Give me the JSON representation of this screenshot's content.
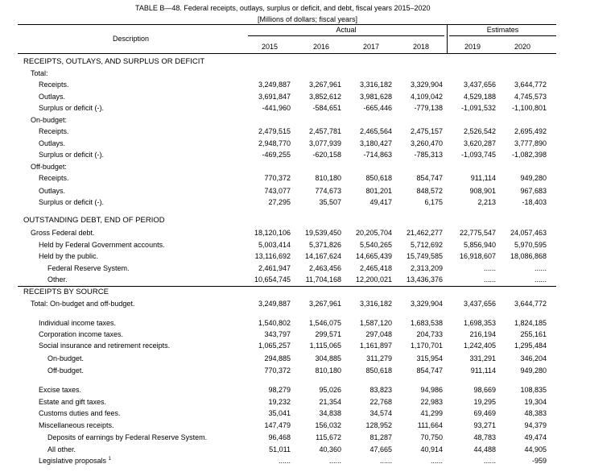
{
  "title": "TABLE B—48.  Federal receipts, outlays, surplus or deficit, and debt, fiscal years 2015–2020",
  "units": "[Millions of dollars; fiscal years]",
  "header": {
    "description": "Description",
    "actual": "Actual",
    "estimates": "Estimates",
    "years": [
      "2015",
      "2016",
      "2017",
      "2018",
      "2019",
      "2020"
    ]
  },
  "rows": [
    {
      "label": "RECEIPTS, OUTLAYS, AND SURPLUS OR DEFICIT",
      "indent": 0,
      "section": true,
      "values": []
    },
    {
      "label": "Total:",
      "indent": 1,
      "values": []
    },
    {
      "label": "Receipts.",
      "indent": 2,
      "values": [
        "3,249,887",
        "3,267,961",
        "3,316,182",
        "3,329,904",
        "3,437,656",
        "3,644,772"
      ]
    },
    {
      "label": "Outlays.",
      "indent": 2,
      "values": [
        "3,691,847",
        "3,852,612",
        "3,981,628",
        "4,109,042",
        "4,529,188",
        "4,745,573"
      ]
    },
    {
      "label": "Surplus or deficit (-).",
      "indent": 2,
      "values": [
        "-441,960",
        "-584,651",
        "-665,446",
        "-779,138",
        "-1,091,532",
        "-1,100,801"
      ]
    },
    {
      "label": "On-budget:",
      "indent": 1,
      "values": []
    },
    {
      "label": "Receipts.",
      "indent": 2,
      "values": [
        "2,479,515",
        "2,457,781",
        "2,465,564",
        "2,475,157",
        "2,526,542",
        "2,695,492"
      ]
    },
    {
      "label": "Outlays.",
      "indent": 2,
      "values": [
        "2,948,770",
        "3,077,939",
        "3,180,427",
        "3,260,470",
        "3,620,287",
        "3,777,890"
      ]
    },
    {
      "label": "Surplus or deficit (-).",
      "indent": 2,
      "values": [
        "-469,255",
        "-620,158",
        "-714,863",
        "-785,313",
        "-1,093,745",
        "-1,082,398"
      ]
    },
    {
      "label": "Off-budget:",
      "indent": 1,
      "values": []
    },
    {
      "label": "Receipts.",
      "indent": 2,
      "values": [
        "770,372",
        "810,180",
        "850,618",
        "854,747",
        "911,114",
        "949,280"
      ]
    },
    {
      "label": "Outlays.",
      "indent": 2,
      "values": [
        "743,077",
        "774,673",
        "801,201",
        "848,572",
        "908,901",
        "967,683"
      ]
    },
    {
      "label": "Surplus or deficit (-).",
      "indent": 2,
      "values": [
        "27,295",
        "35,507",
        "49,417",
        "6,175",
        "2,213",
        "-18,403"
      ]
    },
    {
      "label": "",
      "indent": 0,
      "values": []
    },
    {
      "label": "OUTSTANDING DEBT, END OF PERIOD",
      "indent": 0,
      "section": true,
      "values": []
    },
    {
      "label": "Gross Federal debt.",
      "indent": 1,
      "values": [
        "18,120,106",
        "19,539,450",
        "20,205,704",
        "21,462,277",
        "22,775,547",
        "24,057,463"
      ]
    },
    {
      "label": "Held by Federal Government accounts.",
      "indent": 2,
      "values": [
        "5,003,414",
        "5,371,826",
        "5,540,265",
        "5,712,692",
        "5,856,940",
        "5,970,595"
      ]
    },
    {
      "label": "Held by the public.",
      "indent": 2,
      "values": [
        "13,116,692",
        "14,167,624",
        "14,665,439",
        "15,749,585",
        "16,918,607",
        "18,086,868"
      ]
    },
    {
      "label": "Federal Reserve System.",
      "indent": 3,
      "values": [
        "2,461,947",
        "2,463,456",
        "2,465,418",
        "2,313,209",
        "......",
        "......"
      ]
    },
    {
      "label": "Other.",
      "indent": 3,
      "values": [
        "10,654,745",
        "11,704,168",
        "12,200,021",
        "13,436,376",
        "......",
        "......"
      ]
    },
    {
      "label": "RECEIPTS BY SOURCE",
      "indent": 0,
      "section": true,
      "values": []
    },
    {
      "label": "Total: On-budget and off-budget.",
      "indent": 1,
      "values": [
        "3,249,887",
        "3,267,961",
        "3,316,182",
        "3,329,904",
        "3,437,656",
        "3,644,772"
      ]
    },
    {
      "label": "",
      "indent": 0,
      "values": []
    },
    {
      "label": "Individual income taxes.",
      "indent": 2,
      "values": [
        "1,540,802",
        "1,546,075",
        "1,587,120",
        "1,683,538",
        "1,698,353",
        "1,824,185"
      ]
    },
    {
      "label": "Corporation income taxes.",
      "indent": 2,
      "values": [
        "343,797",
        "299,571",
        "297,048",
        "204,733",
        "216,194",
        "255,161"
      ]
    },
    {
      "label": "Social insurance and retirement receipts.",
      "indent": 2,
      "values": [
        "1,065,257",
        "1,115,065",
        "1,161,897",
        "1,170,701",
        "1,242,405",
        "1,295,484"
      ]
    },
    {
      "label": "On-budget.",
      "indent": 3,
      "values": [
        "294,885",
        "304,885",
        "311,279",
        "315,954",
        "331,291",
        "346,204"
      ]
    },
    {
      "label": "Off-budget.",
      "indent": 3,
      "values": [
        "770,372",
        "810,180",
        "850,618",
        "854,747",
        "911,114",
        "949,280"
      ]
    },
    {
      "label": "",
      "indent": 0,
      "values": []
    },
    {
      "label": "Excise taxes.",
      "indent": 2,
      "values": [
        "98,279",
        "95,026",
        "83,823",
        "94,986",
        "98,669",
        "108,835"
      ]
    },
    {
      "label": "Estate and gift taxes.",
      "indent": 2,
      "values": [
        "19,232",
        "21,354",
        "22,768",
        "22,983",
        "19,295",
        "19,304"
      ]
    },
    {
      "label": "Customs duties and fees.",
      "indent": 2,
      "values": [
        "35,041",
        "34,838",
        "34,574",
        "41,299",
        "69,469",
        "48,383"
      ]
    },
    {
      "label": "Miscellaneous receipts.",
      "indent": 2,
      "values": [
        "147,479",
        "156,032",
        "128,952",
        "111,664",
        "93,271",
        "94,379"
      ]
    },
    {
      "label": "Deposits of earnings by Federal Reserve System.",
      "indent": 3,
      "values": [
        "96,468",
        "115,672",
        "81,287",
        "70,750",
        "48,783",
        "49,474"
      ]
    },
    {
      "label": "All other.",
      "indent": 3,
      "values": [
        "51,011",
        "40,360",
        "47,665",
        "40,914",
        "44,488",
        "44,905"
      ]
    },
    {
      "label": "Legislative proposals",
      "sup": "1",
      "indent": 2,
      "values": [
        "......",
        "......",
        "......",
        "......",
        "......",
        "-959"
      ]
    }
  ]
}
